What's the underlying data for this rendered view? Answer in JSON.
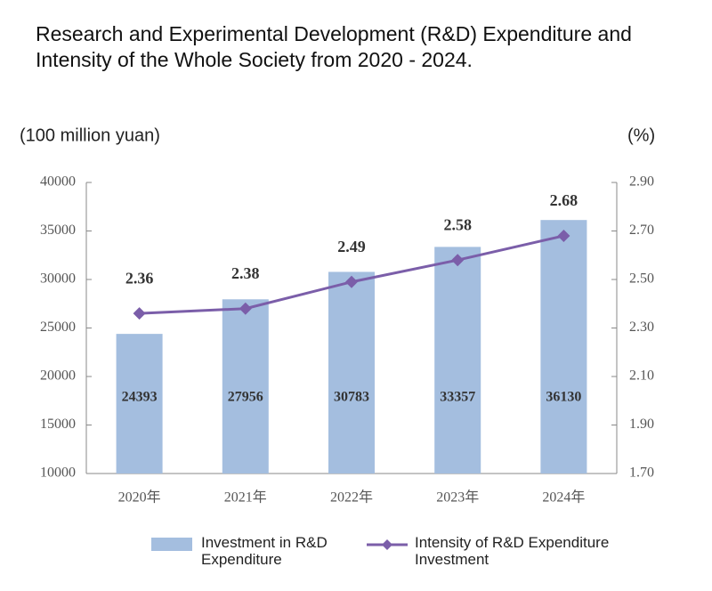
{
  "chart_data": {
    "type": "bar-line",
    "title": "Research and Experimental Development (R&D) Expenditure and Intensity of the Whole Society from 2020 - 2024.",
    "y_label": "(100 million yuan)",
    "y2_label": "(%)",
    "categories": [
      "2020年",
      "2021年",
      "2022年",
      "2023年",
      "2024年"
    ],
    "series": [
      {
        "name": "Investment in R&D Expenditure",
        "type": "bar",
        "color": "#a4bedf",
        "values": [
          24393,
          27956,
          30783,
          33357,
          36130
        ]
      },
      {
        "name": "Intensity of R&D Expenditure Investment",
        "type": "line",
        "axis": "y2",
        "color": "#7b5ea9",
        "values": [
          2.36,
          2.38,
          2.49,
          2.58,
          2.68
        ]
      }
    ],
    "ylim": [
      10000,
      40000
    ],
    "yticks": [
      10000,
      15000,
      20000,
      25000,
      30000,
      35000,
      40000
    ],
    "y2lim": [
      1.7,
      2.9
    ],
    "y2ticks": [
      {
        "value": 1.7,
        "label": "1.70"
      },
      {
        "value": 1.9,
        "label": "1.90"
      },
      {
        "value": 2.1,
        "label": "2.10"
      },
      {
        "value": 2.3,
        "label": "2.30"
      },
      {
        "value": 2.5,
        "label": "2.50"
      },
      {
        "value": 2.7,
        "label": "2.70"
      },
      {
        "value": 2.9,
        "label": "2.90"
      }
    ],
    "grid": false
  }
}
